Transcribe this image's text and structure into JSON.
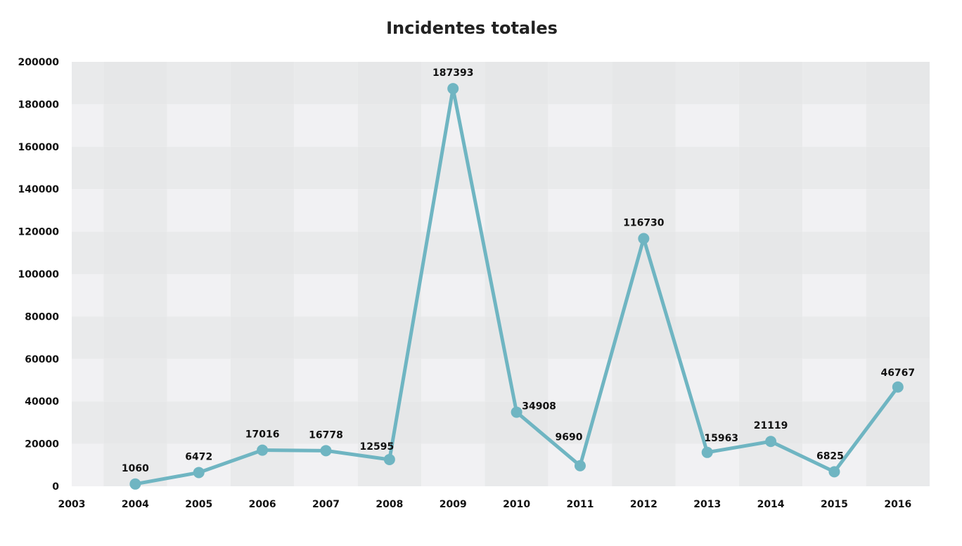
{
  "chart_data": {
    "type": "line",
    "title": "Incidentes totales",
    "xlabel": "",
    "ylabel": "",
    "x": [
      "2004",
      "2005",
      "2006",
      "2007",
      "2008",
      "2009",
      "2010",
      "2011",
      "2012",
      "2013",
      "2014",
      "2015",
      "2016"
    ],
    "x_ticks": [
      "2003",
      "2004",
      "2005",
      "2006",
      "2007",
      "2008",
      "2009",
      "2010",
      "2011",
      "2012",
      "2013",
      "2014",
      "2015",
      "2016"
    ],
    "series": [
      {
        "values": [
          1060,
          6472,
          17016,
          16778,
          12595,
          187393,
          34908,
          9690,
          116730,
          15963,
          21119,
          6825,
          46767
        ]
      }
    ],
    "ylim": [
      0,
      200000
    ],
    "y_ticks": [
      0,
      20000,
      40000,
      60000,
      80000,
      100000,
      120000,
      140000,
      160000,
      180000,
      200000
    ],
    "grid": true,
    "legend": "none",
    "colors": {
      "line": "#6fb5c2",
      "band_dark": "#e9eaeb",
      "band_light": "#f1f1f3"
    }
  }
}
